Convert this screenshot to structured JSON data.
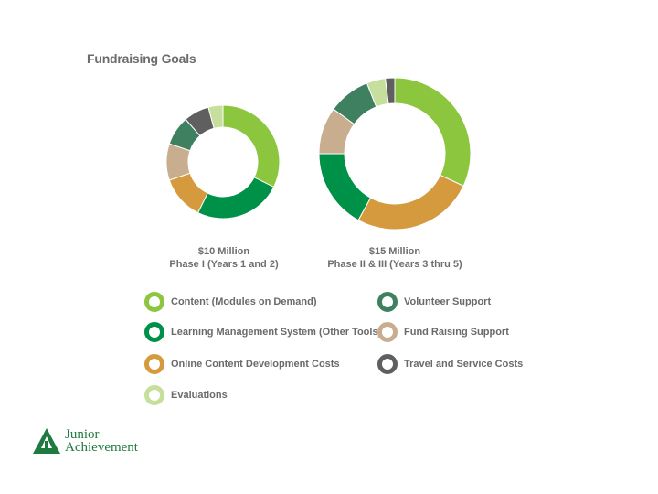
{
  "title": "Fundraising Goals",
  "colors": {
    "content": "#8cc63f",
    "lms": "#009149",
    "online_dev": "#d69a3e",
    "evaluations": "#c6df9c",
    "volunteer": "#3f8060",
    "fund_raising": "#c8ad8f",
    "travel": "#5f5f5f"
  },
  "chart_data": [
    {
      "type": "pie",
      "variant": "donut",
      "caption_line1": "$10 Million",
      "caption_line2": "Phase I (Years 1 and 2)",
      "categories": [
        "Content (Modules on Demand)",
        "Learning Management System (Other Tools)",
        "Online Content Development Costs",
        "Fund Raising Support",
        "Volunteer Support",
        "Travel and Service Costs",
        "Evaluations"
      ],
      "values": [
        31,
        24,
        12,
        10,
        8,
        7,
        4
      ]
    },
    {
      "type": "pie",
      "variant": "donut",
      "caption_line1": "$15 Million",
      "caption_line2": "Phase II & III (Years 3 thru 5)",
      "categories": [
        "Content (Modules on Demand)",
        "Online Content Development Costs",
        "Learning Management System (Other Tools)",
        "Fund Raising Support",
        "Volunteer Support",
        "Evaluations",
        "Travel and Service Costs"
      ],
      "values": [
        32,
        26,
        17,
        10,
        9,
        4,
        2
      ]
    }
  ],
  "legend": [
    {
      "label": "Content (Modules on Demand)",
      "color": "#8cc63f"
    },
    {
      "label": "Learning Management System (Other Tools)",
      "color": "#009149"
    },
    {
      "label": "Online Content Development Costs",
      "color": "#d69a3e"
    },
    {
      "label": "Evaluations",
      "color": "#c6df9c"
    },
    {
      "label": "Volunteer Support",
      "color": "#3f8060"
    },
    {
      "label": "Fund Raising Support",
      "color": "#c8ad8f"
    },
    {
      "label": "Travel and Service Costs",
      "color": "#5f5f5f"
    }
  ],
  "logo": {
    "line1": "Junior",
    "line2": "Achievement",
    "color": "#1f7a3f",
    "icon": "junior-achievement-logo-icon"
  }
}
